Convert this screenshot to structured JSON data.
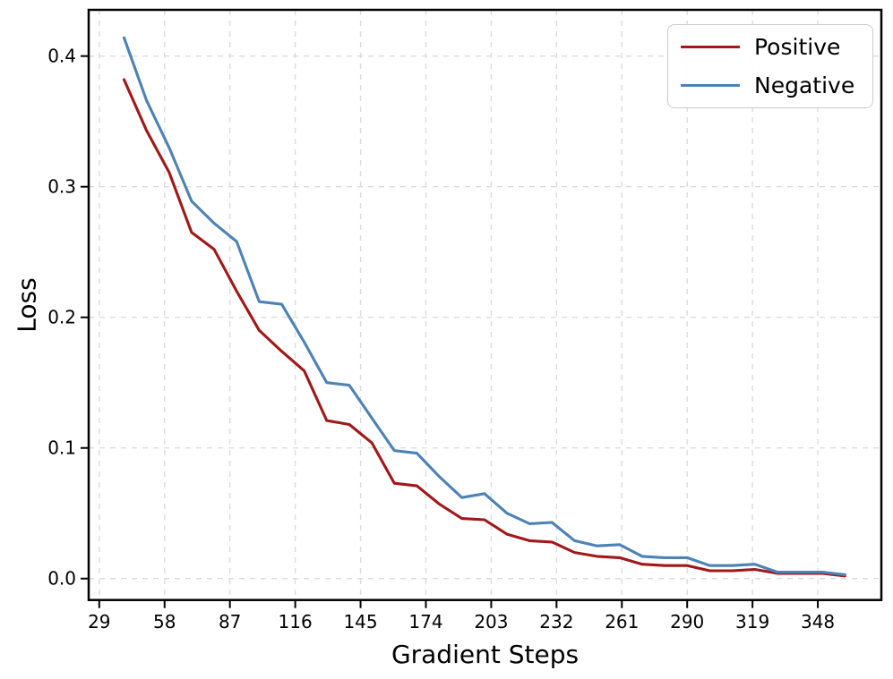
{
  "chart_data": {
    "type": "line",
    "title": "",
    "xlabel": "Gradient Steps",
    "ylabel": "Loss",
    "x": [
      40,
      50,
      60,
      70,
      80,
      90,
      100,
      110,
      120,
      130,
      140,
      150,
      160,
      170,
      180,
      190,
      200,
      210,
      220,
      230,
      240,
      250,
      260,
      270,
      280,
      290,
      300,
      310,
      320,
      330,
      340,
      350,
      360
    ],
    "series": [
      {
        "name": "Positive",
        "color": "#A01818",
        "values": [
          0.382,
          0.343,
          0.311,
          0.265,
          0.252,
          0.22,
          0.19,
          0.174,
          0.159,
          0.121,
          0.118,
          0.104,
          0.073,
          0.071,
          0.057,
          0.046,
          0.045,
          0.034,
          0.029,
          0.028,
          0.02,
          0.017,
          0.016,
          0.011,
          0.01,
          0.01,
          0.006,
          0.006,
          0.007,
          0.004,
          0.004,
          0.004,
          0.002
        ]
      },
      {
        "name": "Negative",
        "color": "#4C82B5",
        "values": [
          0.414,
          0.366,
          0.33,
          0.289,
          0.272,
          0.258,
          0.212,
          0.21,
          0.181,
          0.15,
          0.148,
          0.123,
          0.098,
          0.096,
          0.078,
          0.062,
          0.065,
          0.05,
          0.042,
          0.043,
          0.029,
          0.025,
          0.026,
          0.017,
          0.016,
          0.016,
          0.01,
          0.01,
          0.011,
          0.005,
          0.005,
          0.005,
          0.003
        ]
      }
    ],
    "xticks": [
      29,
      58,
      87,
      116,
      145,
      174,
      203,
      232,
      261,
      290,
      319,
      348
    ],
    "yticks": [
      0.0,
      0.1,
      0.2,
      0.3,
      0.4
    ],
    "ytick_labels": [
      "0.0",
      "0.1",
      "0.2",
      "0.3",
      "0.4"
    ],
    "xlim": [
      24.3,
      376.2
    ],
    "ylim": [
      -0.0164,
      0.4354
    ],
    "grid": "dashed",
    "legend_position": "upper right"
  }
}
